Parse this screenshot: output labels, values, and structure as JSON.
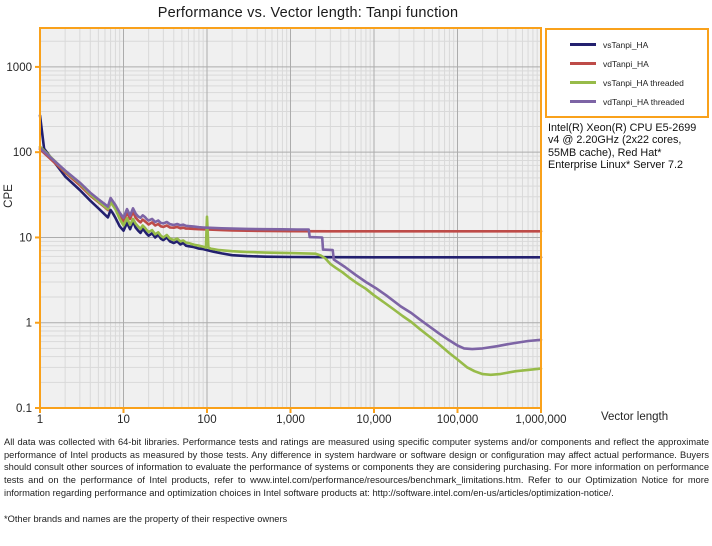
{
  "title": "Performance vs. Vector length: Tanpi function",
  "info_box": {
    "text": "Intel(R) Xeon(R) CPU E5-2699 v4 @ 2.20GHz (2x22 cores, 55MB cache), Red Hat* Enterprise Linux* Server 7.2"
  },
  "footer": {
    "disclaimer": "All data was collected with 64-bit libraries. Performance tests and ratings are measured using specific computer systems and/or components and reflect the approximate performance of Intel products as measured by those tests. Any difference in system hardware or software design or configuration may affect actual performance. Buyers should consult other sources of information to evaluate the performance of systems or components they are considering purchasing. For more information on performance tests and on the performance of Intel products, refer to www.intel.com/performance/resources/benchmark_limitations.htm.  Refer to our Optimization Notice for more information regarding performance and optimization choices in Intel software products at: http://software.intel.com/en-us/articles/optimization-notice/.",
    "footnote": "*Other brands and names are the property of their respective owners"
  },
  "colors": {
    "axis_border": "#F9A11B",
    "plot_bg": "#F0F0F0",
    "grid_minor": "#D9D9D9",
    "grid_major": "#ACACAC",
    "tick_label": "#262626"
  },
  "chart_data": {
    "type": "line",
    "title": "Performance vs. Vector length: Tanpi function",
    "xlabel": "Vector length",
    "ylabel": "CPE",
    "x_scale": "log",
    "y_scale": "log",
    "xlim": [
      1,
      1000000
    ],
    "ylim": [
      0.1,
      2860
    ],
    "grid": true,
    "legend_position": "outside-top-right",
    "x_tick_values": [
      1,
      10,
      100,
      1000,
      10000,
      100000,
      1000000
    ],
    "x_tick_labels": [
      "1",
      "10",
      "100",
      "1,000",
      "10,000",
      "100,000",
      "1,000,000"
    ],
    "y_tick_values": [
      0.1,
      1,
      10,
      100,
      1000
    ],
    "y_tick_labels": [
      "0.1",
      "1",
      "10",
      "100",
      "1000"
    ],
    "series": [
      {
        "name": "vsTanpi_HA",
        "color": "#23206F",
        "points": [
          [
            1,
            270
          ],
          [
            1.12,
            110
          ],
          [
            2,
            52
          ],
          [
            3,
            36
          ],
          [
            4,
            27
          ],
          [
            5,
            22
          ],
          [
            6,
            18.5
          ],
          [
            6.5,
            17.2
          ],
          [
            7,
            21
          ],
          [
            7.5,
            19
          ],
          [
            8,
            17
          ],
          [
            9,
            13.5
          ],
          [
            10,
            12
          ],
          [
            11,
            14.8
          ],
          [
            12,
            12.5
          ],
          [
            13,
            15.5
          ],
          [
            14,
            13
          ],
          [
            15,
            12
          ],
          [
            16,
            11.3
          ],
          [
            17,
            12.6
          ],
          [
            18,
            11.8
          ],
          [
            19,
            11
          ],
          [
            20,
            10.5
          ],
          [
            22,
            11.2
          ],
          [
            24,
            10
          ],
          [
            26,
            10.8
          ],
          [
            28,
            9.7
          ],
          [
            30,
            9.3
          ],
          [
            33,
            10
          ],
          [
            36,
            9
          ],
          [
            40,
            8.6
          ],
          [
            44,
            9
          ],
          [
            48,
            8.3
          ],
          [
            52,
            8.6
          ],
          [
            56,
            8
          ],
          [
            60,
            7.9
          ],
          [
            70,
            7.7
          ],
          [
            80,
            7.4
          ],
          [
            90,
            7.3
          ],
          [
            100,
            7.1
          ],
          [
            120,
            6.8
          ],
          [
            150,
            6.5
          ],
          [
            200,
            6.2
          ],
          [
            300,
            6.05
          ],
          [
            500,
            5.95
          ],
          [
            1000,
            5.9
          ],
          [
            3000,
            5.87
          ],
          [
            10000,
            5.85
          ],
          [
            100000,
            5.85
          ],
          [
            1000000,
            5.85
          ]
        ]
      },
      {
        "name": "vdTanpi_HA",
        "color": "#BE4B48",
        "points": [
          [
            1,
            108
          ],
          [
            2,
            58
          ],
          [
            3,
            41
          ],
          [
            4,
            31
          ],
          [
            5,
            26
          ],
          [
            6,
            22.5
          ],
          [
            6.5,
            21
          ],
          [
            7,
            26
          ],
          [
            7.5,
            24
          ],
          [
            8,
            22
          ],
          [
            9,
            17.5
          ],
          [
            10,
            15.5
          ],
          [
            11,
            19.5
          ],
          [
            12,
            16.5
          ],
          [
            13,
            20
          ],
          [
            14,
            17
          ],
          [
            15,
            15.8
          ],
          [
            16,
            15
          ],
          [
            17,
            16.2
          ],
          [
            18,
            15.5
          ],
          [
            19,
            14.8
          ],
          [
            20,
            14.2
          ],
          [
            22,
            15
          ],
          [
            24,
            13.8
          ],
          [
            26,
            14.4
          ],
          [
            28,
            13.5
          ],
          [
            30,
            13.3
          ],
          [
            33,
            13.8
          ],
          [
            36,
            13.1
          ],
          [
            40,
            13
          ],
          [
            44,
            13.3
          ],
          [
            48,
            12.8
          ],
          [
            52,
            13
          ],
          [
            56,
            12.7
          ],
          [
            60,
            12.7
          ],
          [
            70,
            12.6
          ],
          [
            80,
            12.5
          ],
          [
            90,
            12.45
          ],
          [
            100,
            12.4
          ],
          [
            150,
            12.2
          ],
          [
            200,
            12.1
          ],
          [
            300,
            12
          ],
          [
            500,
            11.9
          ],
          [
            1000,
            11.85
          ],
          [
            3000,
            11.8
          ],
          [
            10000,
            11.8
          ],
          [
            100000,
            11.8
          ],
          [
            1000000,
            11.8
          ]
        ]
      },
      {
        "name": "vsTanpi_HA threaded",
        "color": "#97BB49",
        "points": [
          [
            1,
            116
          ],
          [
            2,
            60
          ],
          [
            3,
            43
          ],
          [
            4,
            32
          ],
          [
            5,
            26.5
          ],
          [
            6,
            23
          ],
          [
            6.5,
            21.5
          ],
          [
            7,
            26
          ],
          [
            8,
            21.5
          ],
          [
            9,
            16.5
          ],
          [
            10,
            13.8
          ],
          [
            11,
            16.8
          ],
          [
            12,
            14
          ],
          [
            13,
            16.5
          ],
          [
            14,
            14.5
          ],
          [
            15,
            13.4
          ],
          [
            16,
            12.6
          ],
          [
            17,
            13.8
          ],
          [
            18,
            13
          ],
          [
            19,
            12.2
          ],
          [
            20,
            11.6
          ],
          [
            22,
            12.2
          ],
          [
            24,
            10.9
          ],
          [
            26,
            11.5
          ],
          [
            28,
            10.5
          ],
          [
            30,
            10
          ],
          [
            33,
            10.7
          ],
          [
            36,
            9.7
          ],
          [
            40,
            9.3
          ],
          [
            44,
            9.7
          ],
          [
            48,
            9
          ],
          [
            52,
            9.2
          ],
          [
            56,
            8.7
          ],
          [
            60,
            8.6
          ],
          [
            70,
            8.2
          ],
          [
            80,
            8
          ],
          [
            90,
            7.8
          ],
          [
            97,
            7.6
          ],
          [
            100,
            17.5
          ],
          [
            104,
            7.6
          ],
          [
            110,
            7.4
          ],
          [
            120,
            7.3
          ],
          [
            140,
            7.1
          ],
          [
            170,
            7
          ],
          [
            200,
            6.9
          ],
          [
            250,
            6.8
          ],
          [
            300,
            6.75
          ],
          [
            400,
            6.7
          ],
          [
            500,
            6.65
          ],
          [
            700,
            6.6
          ],
          [
            1000,
            6.55
          ],
          [
            1500,
            6.5
          ],
          [
            2000,
            6.45
          ],
          [
            2300,
            6.15
          ],
          [
            2600,
            5.7
          ],
          [
            3000,
            4.9
          ],
          [
            3500,
            4.4
          ],
          [
            4200,
            3.9
          ],
          [
            5000,
            3.4
          ],
          [
            6300,
            2.9
          ],
          [
            8000,
            2.5
          ],
          [
            10000,
            2.1
          ],
          [
            13000,
            1.75
          ],
          [
            17000,
            1.45
          ],
          [
            22000,
            1.2
          ],
          [
            28000,
            1.02
          ],
          [
            35000,
            0.85
          ],
          [
            45000,
            0.7
          ],
          [
            60000,
            0.56
          ],
          [
            80000,
            0.44
          ],
          [
            100000,
            0.37
          ],
          [
            130000,
            0.3
          ],
          [
            160000,
            0.27
          ],
          [
            200000,
            0.25
          ],
          [
            250000,
            0.245
          ],
          [
            320000,
            0.25
          ],
          [
            400000,
            0.26
          ],
          [
            500000,
            0.27
          ],
          [
            700000,
            0.28
          ],
          [
            1000000,
            0.29
          ]
        ]
      },
      {
        "name": "vdTanpi_HA threaded",
        "color": "#7D64A5",
        "points": [
          [
            1,
            112
          ],
          [
            2,
            61
          ],
          [
            3,
            44
          ],
          [
            4,
            33.5
          ],
          [
            5,
            28
          ],
          [
            6,
            24.5
          ],
          [
            6.5,
            23
          ],
          [
            7,
            29
          ],
          [
            8,
            24
          ],
          [
            9,
            19.5
          ],
          [
            10,
            17
          ],
          [
            11,
            21.5
          ],
          [
            12,
            18
          ],
          [
            13,
            22
          ],
          [
            14,
            19
          ],
          [
            15,
            17.6
          ],
          [
            16,
            17
          ],
          [
            17,
            18.2
          ],
          [
            18,
            17.4
          ],
          [
            19,
            16.4
          ],
          [
            20,
            15.8
          ],
          [
            22,
            16.5
          ],
          [
            24,
            15.2
          ],
          [
            26,
            15.8
          ],
          [
            28,
            14.8
          ],
          [
            30,
            14.6
          ],
          [
            33,
            15.2
          ],
          [
            36,
            14.3
          ],
          [
            40,
            14
          ],
          [
            44,
            14.4
          ],
          [
            48,
            13.9
          ],
          [
            52,
            14.1
          ],
          [
            56,
            13.7
          ],
          [
            60,
            13.6
          ],
          [
            70,
            13.4
          ],
          [
            80,
            13.2
          ],
          [
            90,
            13.1
          ],
          [
            100,
            13
          ],
          [
            150,
            12.8
          ],
          [
            200,
            12.7
          ],
          [
            300,
            12.6
          ],
          [
            500,
            12.5
          ],
          [
            800,
            12.45
          ],
          [
            1200,
            12.4
          ],
          [
            1650,
            12.4
          ],
          [
            1700,
            10.1
          ],
          [
            2400,
            10
          ],
          [
            2450,
            7.2
          ],
          [
            3200,
            7.1
          ],
          [
            3300,
            5.5
          ],
          [
            4500,
            4.5
          ],
          [
            6000,
            3.65
          ],
          [
            8000,
            3
          ],
          [
            10500,
            2.55
          ],
          [
            14000,
            2.1
          ],
          [
            21000,
            1.55
          ],
          [
            28000,
            1.3
          ],
          [
            35000,
            1.1
          ],
          [
            45000,
            0.92
          ],
          [
            60000,
            0.75
          ],
          [
            80000,
            0.62
          ],
          [
            100000,
            0.54
          ],
          [
            120000,
            0.5
          ],
          [
            150000,
            0.49
          ],
          [
            200000,
            0.5
          ],
          [
            300000,
            0.53
          ],
          [
            400000,
            0.56
          ],
          [
            500000,
            0.58
          ],
          [
            700000,
            0.61
          ],
          [
            1000000,
            0.63
          ]
        ]
      }
    ]
  }
}
